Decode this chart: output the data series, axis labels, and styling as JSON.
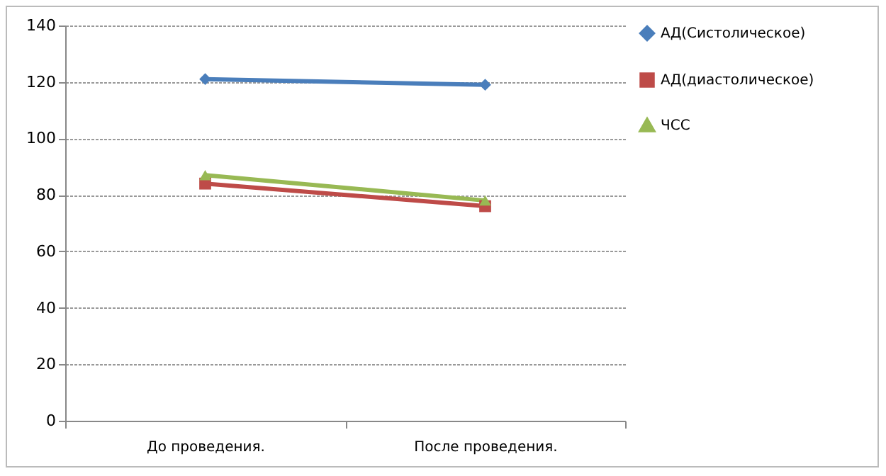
{
  "chart_data": {
    "type": "line",
    "categories": [
      "До проведения.",
      "После проведения."
    ],
    "series": [
      {
        "name": "АД(Систолическое)",
        "color": "#4a7ebb",
        "marker": "diamond",
        "values": [
          121,
          119
        ]
      },
      {
        "name": "АД(диастолическое)",
        "color": "#be4b48",
        "marker": "square",
        "values": [
          84,
          76
        ]
      },
      {
        "name": "ЧСС",
        "color": "#98b954",
        "marker": "triangle",
        "values": [
          87,
          78
        ]
      }
    ],
    "ylim": [
      0,
      140
    ],
    "yticks": [
      0,
      20,
      40,
      60,
      80,
      100,
      120,
      140
    ],
    "grid": "y",
    "legend": "right"
  }
}
